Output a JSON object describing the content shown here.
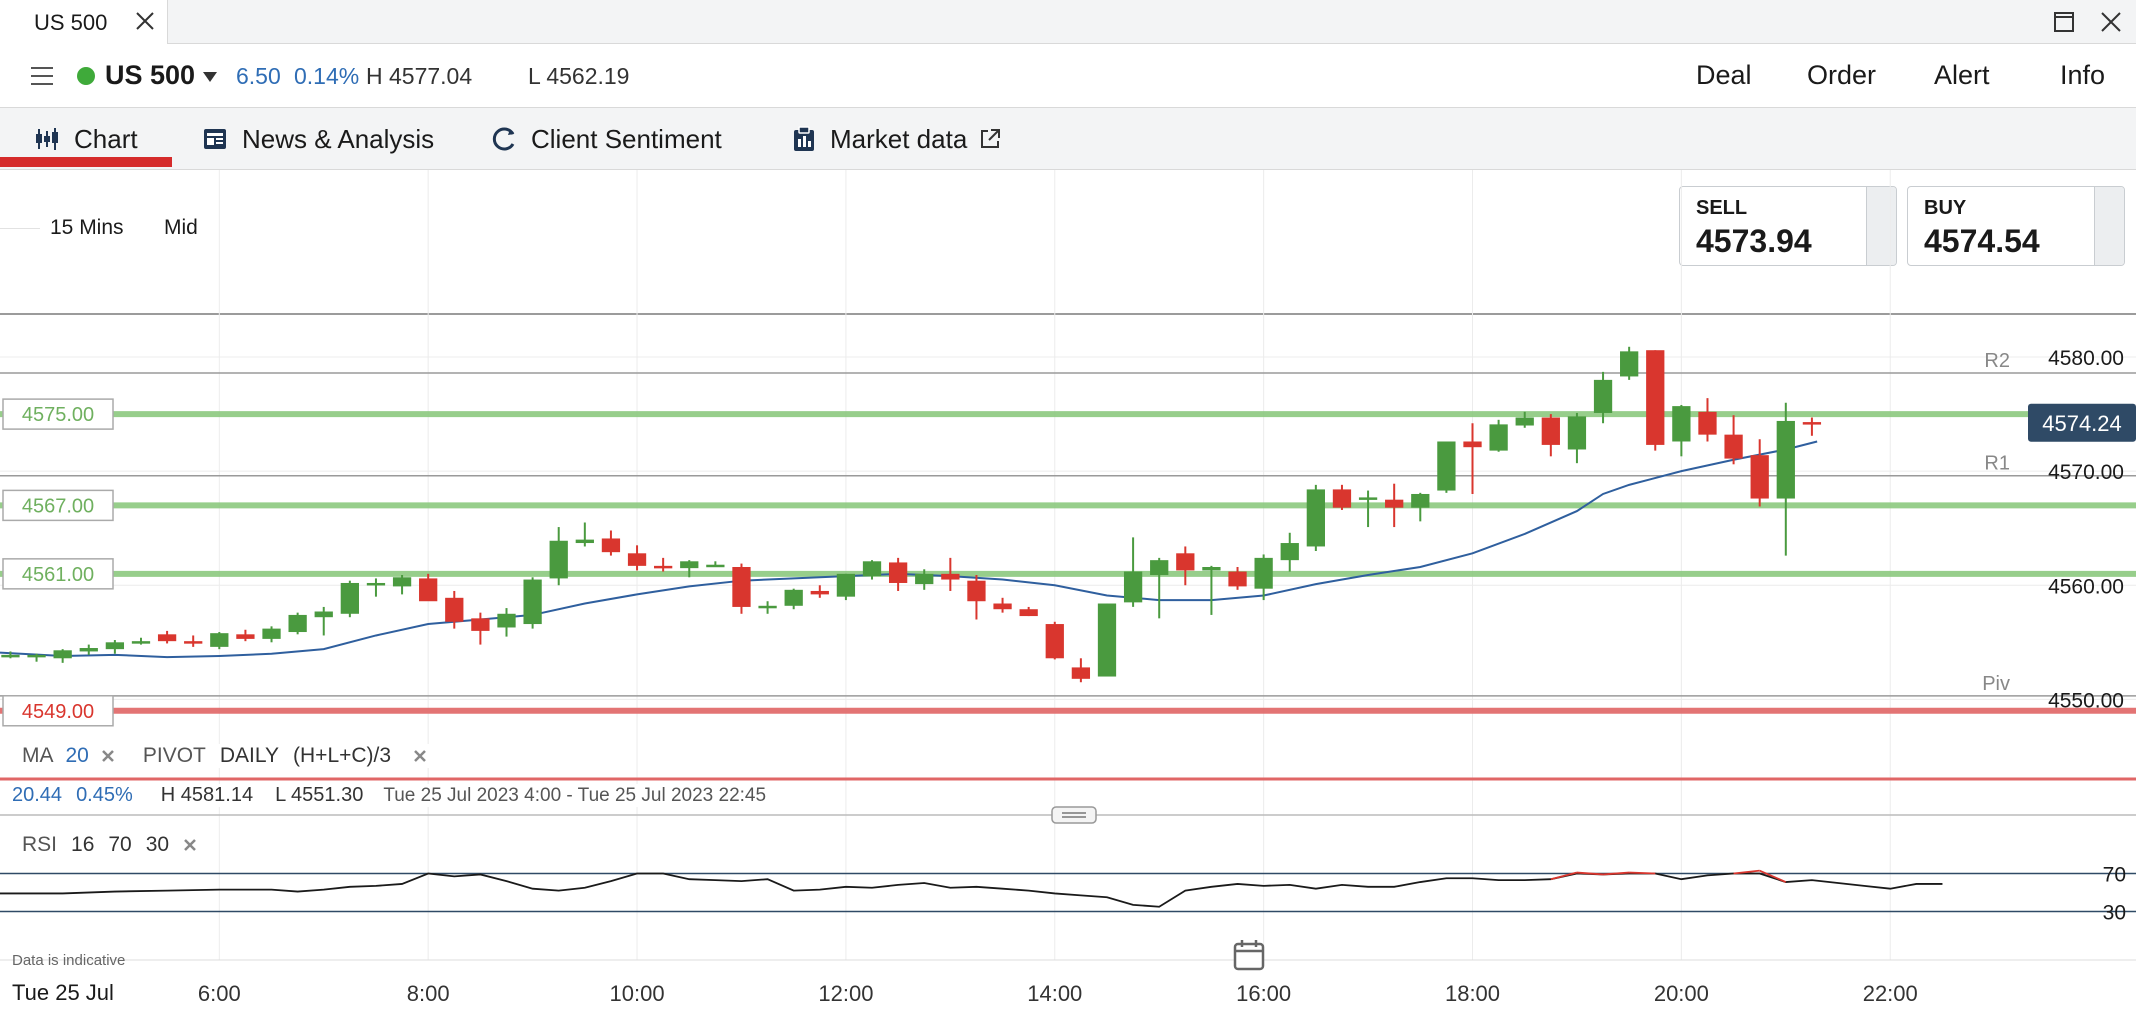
{
  "window": {
    "tab_title": "US 500"
  },
  "instrument": {
    "name": "US 500",
    "change": "6.50",
    "change_percent": "0.14%",
    "high": "H 4577.04",
    "low": "L 4562.19",
    "status_color": "#3faa3a"
  },
  "actions": [
    "Deal",
    "Order",
    "Alert",
    "Info"
  ],
  "subnav": [
    {
      "label": "Chart",
      "icon": "candlestick-icon",
      "active": true
    },
    {
      "label": "News & Analysis",
      "icon": "newspaper-icon",
      "active": false
    },
    {
      "label": "Client Sentiment",
      "icon": "sentiment-gauge-icon",
      "active": false
    },
    {
      "label": "Market data",
      "icon": "clipboard-icon",
      "active": false,
      "external": true
    }
  ],
  "chart_controls": {
    "timeframe": "15 Mins",
    "price_type": "Mid"
  },
  "quotes": {
    "sell_label": "SELL",
    "sell_price": "4573.94",
    "buy_label": "BUY",
    "buy_price": "4574.54"
  },
  "overlay": {
    "ma_label": "MA",
    "ma_period": "20",
    "pivot_label": "PIVOT",
    "pivot_period": "DAILY",
    "pivot_formula": "(H+L+C)/3",
    "range_change": "20.44",
    "range_change_percent": "0.45%",
    "range_high": "H 4581.14",
    "range_low": "L 4551.30",
    "range_period": "Tue 25 Jul 2023 4:00 - Tue 25 Jul 2023 22:45",
    "rsi_label": "RSI",
    "rsi_period": "16",
    "rsi_upper": "70",
    "rsi_lower": "30"
  },
  "footer": {
    "note": "Data is indicative",
    "date": "Tue 25 Jul"
  },
  "chart_data": {
    "type": "candlestick",
    "ylim": [
      4546,
      4585
    ],
    "y_ticks": [
      4550,
      4560,
      4570,
      4580
    ],
    "y_tick_labels": [
      "4550.00",
      "4560.00",
      "4570.00",
      "4580.00"
    ],
    "x_ticks": [
      6,
      8,
      10,
      12,
      14,
      16,
      18,
      20,
      22
    ],
    "x_tick_labels": [
      "6:00",
      "8:00",
      "10:00",
      "12:00",
      "14:00",
      "16:00",
      "18:00",
      "20:00",
      "22:00"
    ],
    "x_range": [
      3.9,
      23.3
    ],
    "current_price": 4574.24,
    "current_price_label": "4574.24",
    "pivot_levels": [
      {
        "name": "R2",
        "value": 4578.6
      },
      {
        "name": "R1",
        "value": 4569.6
      },
      {
        "name": "Piv",
        "value": 4550.3
      }
    ],
    "alert_lines": [
      {
        "label": "4575.00",
        "value": 4575.0,
        "color": "#8cc97f"
      },
      {
        "label": "4567.00",
        "value": 4567.0,
        "color": "#8cc97f"
      },
      {
        "label": "4561.00",
        "value": 4561.0,
        "color": "#8cc97f"
      },
      {
        "label": "4549.00",
        "value": 4549.0,
        "color": "#e06666"
      }
    ],
    "up_color": "#4a9a3f",
    "down_color": "#d9362e",
    "ma_color": "#2f5f9e",
    "candles": [
      [
        4.0,
        4553.9,
        4554.2,
        4553.6,
        4553.9
      ],
      [
        4.25,
        4553.7,
        4554.0,
        4553.3,
        4553.9
      ],
      [
        4.5,
        4553.6,
        4554.4,
        4553.2,
        4554.3
      ],
      [
        4.75,
        4554.2,
        4554.8,
        4553.9,
        4554.5
      ],
      [
        5.0,
        4554.4,
        4555.2,
        4554.0,
        4555.0
      ],
      [
        5.25,
        4555.0,
        4555.4,
        4554.8,
        4555.1
      ],
      [
        5.5,
        4555.7,
        4556.0,
        4554.9,
        4555.1
      ],
      [
        5.75,
        4555.1,
        4555.6,
        4554.6,
        4554.9
      ],
      [
        6.0,
        4554.6,
        4555.9,
        4554.4,
        4555.8
      ],
      [
        6.25,
        4555.7,
        4556.1,
        4555.1,
        4555.3
      ],
      [
        6.5,
        4555.3,
        4556.4,
        4555.0,
        4556.2
      ],
      [
        6.75,
        4555.9,
        4557.6,
        4555.7,
        4557.4
      ],
      [
        7.0,
        4557.2,
        4558.1,
        4555.6,
        4557.7
      ],
      [
        7.25,
        4557.5,
        4560.4,
        4557.2,
        4560.2
      ],
      [
        7.5,
        4560.1,
        4560.6,
        4559.0,
        4560.2
      ],
      [
        7.75,
        4559.9,
        4560.9,
        4559.2,
        4560.7
      ],
      [
        8.0,
        4560.6,
        4561.0,
        4558.7,
        4558.6
      ],
      [
        8.25,
        4558.9,
        4559.5,
        4556.2,
        4556.8
      ],
      [
        8.5,
        4557.1,
        4557.6,
        4554.8,
        4556.0
      ],
      [
        8.75,
        4556.3,
        4558.0,
        4555.5,
        4557.5
      ],
      [
        9.0,
        4556.6,
        4560.7,
        4556.2,
        4560.5
      ],
      [
        9.25,
        4560.6,
        4565.1,
        4560.0,
        4563.9
      ],
      [
        9.5,
        4563.7,
        4565.5,
        4563.4,
        4564.0
      ],
      [
        9.75,
        4564.1,
        4564.8,
        4562.6,
        4562.9
      ],
      [
        10.0,
        4562.8,
        4563.5,
        4561.3,
        4561.7
      ],
      [
        10.25,
        4561.7,
        4562.4,
        4561.2,
        4561.6
      ],
      [
        10.5,
        4561.5,
        4562.2,
        4560.7,
        4562.1
      ],
      [
        10.75,
        4561.8,
        4562.1,
        4561.6,
        4561.8
      ],
      [
        11.0,
        4561.6,
        4561.9,
        4557.5,
        4558.1
      ],
      [
        11.25,
        4558.0,
        4558.6,
        4557.5,
        4558.2
      ],
      [
        11.5,
        4558.2,
        4559.7,
        4557.9,
        4559.6
      ],
      [
        11.75,
        4559.5,
        4560.0,
        4558.9,
        4559.2
      ],
      [
        12.0,
        4559.0,
        4561.0,
        4558.7,
        4561.0
      ],
      [
        12.25,
        4560.8,
        4562.2,
        4560.5,
        4562.1
      ],
      [
        12.5,
        4562.0,
        4562.4,
        4559.5,
        4560.2
      ],
      [
        12.75,
        4560.1,
        4561.4,
        4559.6,
        4561.0
      ],
      [
        13.0,
        4561.0,
        4562.4,
        4559.5,
        4560.5
      ],
      [
        13.25,
        4560.4,
        4560.9,
        4557.0,
        4558.6
      ],
      [
        13.5,
        4558.4,
        4558.9,
        4557.6,
        4557.9
      ],
      [
        13.75,
        4557.9,
        4558.1,
        4557.3,
        4557.3
      ],
      [
        14.0,
        4556.6,
        4556.8,
        4553.5,
        4553.6
      ],
      [
        14.25,
        4552.8,
        4553.6,
        4551.5,
        4551.8
      ],
      [
        14.5,
        4552.0,
        4558.4,
        4552.0,
        4558.4
      ],
      [
        14.75,
        4558.5,
        4564.2,
        4558.1,
        4561.2
      ],
      [
        15.0,
        4560.9,
        4562.4,
        4557.1,
        4562.2
      ],
      [
        15.25,
        4562.8,
        4563.4,
        4560.0,
        4561.3
      ],
      [
        15.5,
        4561.3,
        4561.7,
        4557.4,
        4561.6
      ],
      [
        15.75,
        4561.2,
        4561.6,
        4559.6,
        4559.9
      ],
      [
        16.0,
        4559.7,
        4562.7,
        4558.7,
        4562.4
      ],
      [
        16.25,
        4562.2,
        4564.6,
        4561.2,
        4563.7
      ],
      [
        16.5,
        4563.4,
        4568.8,
        4563.0,
        4568.4
      ],
      [
        16.75,
        4568.4,
        4568.8,
        4566.6,
        4566.8
      ],
      [
        17.0,
        4567.5,
        4568.3,
        4565.1,
        4567.7
      ],
      [
        17.25,
        4567.5,
        4568.9,
        4565.1,
        4566.8
      ],
      [
        17.5,
        4566.8,
        4568.1,
        4565.6,
        4568.0
      ],
      [
        17.75,
        4568.3,
        4572.6,
        4568.1,
        4572.6
      ],
      [
        18.0,
        4572.6,
        4574.2,
        4568.0,
        4572.1
      ],
      [
        18.25,
        4571.8,
        4574.5,
        4571.7,
        4574.1
      ],
      [
        18.5,
        4574.0,
        4575.2,
        4573.8,
        4574.7
      ],
      [
        18.75,
        4574.7,
        4575.0,
        4571.3,
        4572.3
      ],
      [
        19.0,
        4571.9,
        4575.1,
        4570.7,
        4574.8
      ],
      [
        19.25,
        4575.1,
        4578.7,
        4574.2,
        4578.0
      ],
      [
        19.5,
        4578.3,
        4580.9,
        4578.0,
        4580.5
      ],
      [
        19.75,
        4580.6,
        4580.6,
        4571.8,
        4572.3
      ],
      [
        20.0,
        4572.6,
        4575.8,
        4571.3,
        4575.7
      ],
      [
        20.25,
        4575.2,
        4576.4,
        4572.6,
        4573.2
      ],
      [
        20.5,
        4573.2,
        4574.9,
        4570.6,
        4571.1
      ],
      [
        20.75,
        4571.4,
        4572.8,
        4566.9,
        4567.6
      ],
      [
        21.0,
        4567.6,
        4576.0,
        4562.6,
        4574.4
      ],
      [
        21.25,
        4574.3,
        4574.7,
        4573.1,
        4574.2
      ]
    ],
    "ma": [
      [
        3.9,
        4554.1
      ],
      [
        4.5,
        4553.8
      ],
      [
        5.0,
        4553.9
      ],
      [
        5.5,
        4553.7
      ],
      [
        6.0,
        4553.8
      ],
      [
        6.5,
        4554.0
      ],
      [
        7.0,
        4554.4
      ],
      [
        7.5,
        4555.6
      ],
      [
        8.0,
        4556.6
      ],
      [
        8.5,
        4557.0
      ],
      [
        9.0,
        4557.4
      ],
      [
        9.5,
        4558.4
      ],
      [
        10.0,
        4559.2
      ],
      [
        10.5,
        4559.9
      ],
      [
        11.0,
        4560.4
      ],
      [
        11.5,
        4560.6
      ],
      [
        12.0,
        4560.8
      ],
      [
        12.5,
        4561.0
      ],
      [
        13.0,
        4560.8
      ],
      [
        13.5,
        4560.5
      ],
      [
        14.0,
        4560.0
      ],
      [
        14.5,
        4559.1
      ],
      [
        15.0,
        4558.7
      ],
      [
        15.5,
        4558.7
      ],
      [
        16.0,
        4559.1
      ],
      [
        16.5,
        4560.1
      ],
      [
        17.0,
        4560.9
      ],
      [
        17.5,
        4561.6
      ],
      [
        18.0,
        4562.8
      ],
      [
        18.5,
        4564.5
      ],
      [
        19.0,
        4566.5
      ],
      [
        19.25,
        4568.0
      ],
      [
        19.5,
        4568.8
      ],
      [
        20.0,
        4570.0
      ],
      [
        20.5,
        4571.0
      ],
      [
        21.0,
        4571.9
      ],
      [
        21.3,
        4572.6
      ]
    ],
    "rsi": {
      "upper": 70,
      "lower": 30,
      "color": "#1a1a1a",
      "overbought_color": "#d9362e",
      "points": [
        [
          3.9,
          49
        ],
        [
          4.5,
          49
        ],
        [
          5.0,
          51
        ],
        [
          5.5,
          52
        ],
        [
          6.0,
          53
        ],
        [
          6.5,
          53
        ],
        [
          6.75,
          51
        ],
        [
          7.0,
          53
        ],
        [
          7.25,
          56
        ],
        [
          7.5,
          57
        ],
        [
          7.75,
          59
        ],
        [
          8.0,
          70
        ],
        [
          8.25,
          67
        ],
        [
          8.5,
          69
        ],
        [
          8.75,
          62
        ],
        [
          9.0,
          54
        ],
        [
          9.25,
          52
        ],
        [
          9.5,
          55
        ],
        [
          9.75,
          62
        ],
        [
          10.0,
          70
        ],
        [
          10.25,
          70
        ],
        [
          10.5,
          64
        ],
        [
          10.75,
          63
        ],
        [
          11.0,
          62
        ],
        [
          11.25,
          64
        ],
        [
          11.5,
          52
        ],
        [
          11.75,
          53
        ],
        [
          12.0,
          56
        ],
        [
          12.25,
          55
        ],
        [
          12.5,
          58
        ],
        [
          12.75,
          60
        ],
        [
          13.0,
          55
        ],
        [
          13.25,
          56
        ],
        [
          13.5,
          54
        ],
        [
          13.75,
          52
        ],
        [
          14.0,
          49
        ],
        [
          14.25,
          47
        ],
        [
          14.5,
          45
        ],
        [
          14.75,
          37
        ],
        [
          15.0,
          35
        ],
        [
          15.25,
          52
        ],
        [
          15.5,
          56
        ],
        [
          15.75,
          59
        ],
        [
          16.0,
          57
        ],
        [
          16.25,
          58
        ],
        [
          16.5,
          54
        ],
        [
          16.75,
          58
        ],
        [
          17.0,
          56
        ],
        [
          17.25,
          56
        ],
        [
          17.5,
          61
        ],
        [
          17.75,
          65
        ],
        [
          18.0,
          65
        ],
        [
          18.25,
          63
        ],
        [
          18.5,
          63
        ],
        [
          18.75,
          64
        ],
        [
          19.0,
          71
        ],
        [
          19.25,
          69
        ],
        [
          19.5,
          71
        ],
        [
          19.75,
          70
        ],
        [
          20.0,
          64
        ],
        [
          20.25,
          68
        ],
        [
          20.5,
          70
        ],
        [
          20.75,
          73
        ],
        [
          21.0,
          61
        ],
        [
          21.25,
          63
        ],
        [
          21.5,
          60
        ],
        [
          21.75,
          57
        ],
        [
          22.0,
          54
        ],
        [
          22.25,
          59
        ],
        [
          22.5,
          59
        ]
      ]
    }
  }
}
